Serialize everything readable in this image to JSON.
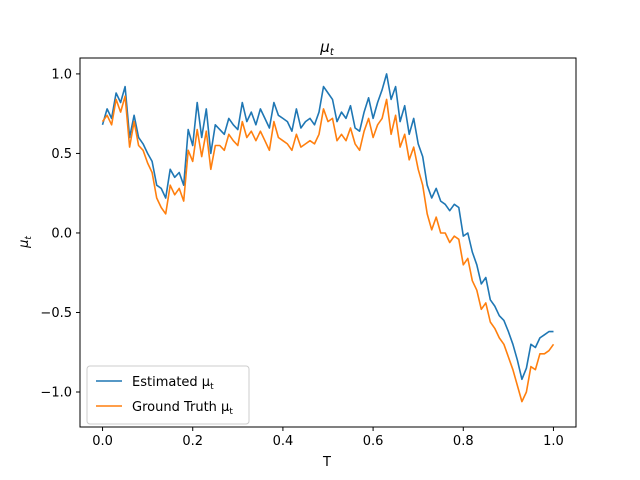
{
  "chart_data": {
    "type": "line",
    "title": "μt",
    "title_parts": {
      "base": "μ",
      "sub": "t"
    },
    "xlabel": "T",
    "ylabel": "μt",
    "ylabel_parts": {
      "base": "μ",
      "sub": "t"
    },
    "xlim": [
      -0.05,
      1.05
    ],
    "ylim": [
      -1.22,
      1.1
    ],
    "xticks": [
      0.0,
      0.2,
      0.4,
      0.6,
      0.8,
      1.0
    ],
    "xtick_labels": [
      "0.0",
      "0.2",
      "0.4",
      "0.6",
      "0.8",
      "1.0"
    ],
    "yticks": [
      1.0,
      0.5,
      0.0,
      -0.5,
      -1.0
    ],
    "ytick_labels": [
      "1.0",
      "0.5",
      "0.0",
      "−0.5",
      "−1.0"
    ],
    "grid": false,
    "legend_position": "lower-left",
    "series": [
      {
        "name": "Estimated μt",
        "legend_base": "Estimated μ",
        "legend_sub": "t",
        "color": "#1f77b4",
        "x": [
          0.0,
          0.01,
          0.02,
          0.03,
          0.04,
          0.05,
          0.06,
          0.07,
          0.08,
          0.09,
          0.1,
          0.11,
          0.12,
          0.13,
          0.14,
          0.15,
          0.16,
          0.17,
          0.18,
          0.19,
          0.2,
          0.21,
          0.22,
          0.23,
          0.24,
          0.25,
          0.26,
          0.27,
          0.28,
          0.29,
          0.3,
          0.31,
          0.32,
          0.33,
          0.34,
          0.35,
          0.36,
          0.37,
          0.38,
          0.39,
          0.4,
          0.41,
          0.42,
          0.43,
          0.44,
          0.45,
          0.46,
          0.47,
          0.48,
          0.49,
          0.5,
          0.51,
          0.52,
          0.53,
          0.54,
          0.55,
          0.56,
          0.57,
          0.58,
          0.59,
          0.6,
          0.61,
          0.62,
          0.63,
          0.64,
          0.65,
          0.66,
          0.67,
          0.68,
          0.69,
          0.7,
          0.71,
          0.72,
          0.73,
          0.74,
          0.75,
          0.76,
          0.77,
          0.78,
          0.79,
          0.8,
          0.81,
          0.82,
          0.83,
          0.84,
          0.85,
          0.86,
          0.87,
          0.88,
          0.89,
          0.9,
          0.91,
          0.92,
          0.93,
          0.94,
          0.95,
          0.96,
          0.97,
          0.98,
          0.99,
          1.0
        ],
        "y": [
          0.68,
          0.78,
          0.72,
          0.88,
          0.82,
          0.92,
          0.6,
          0.74,
          0.6,
          0.56,
          0.5,
          0.45,
          0.3,
          0.28,
          0.22,
          0.4,
          0.35,
          0.38,
          0.3,
          0.65,
          0.55,
          0.82,
          0.6,
          0.78,
          0.5,
          0.68,
          0.65,
          0.62,
          0.72,
          0.68,
          0.65,
          0.82,
          0.7,
          0.76,
          0.68,
          0.78,
          0.72,
          0.66,
          0.82,
          0.74,
          0.72,
          0.7,
          0.64,
          0.78,
          0.66,
          0.7,
          0.72,
          0.68,
          0.76,
          0.92,
          0.88,
          0.84,
          0.7,
          0.76,
          0.72,
          0.8,
          0.66,
          0.64,
          0.76,
          0.85,
          0.72,
          0.82,
          0.9,
          1.0,
          0.84,
          0.92,
          0.7,
          0.8,
          0.62,
          0.72,
          0.56,
          0.48,
          0.3,
          0.22,
          0.28,
          0.2,
          0.18,
          0.14,
          0.18,
          0.16,
          -0.02,
          0.0,
          -0.12,
          -0.2,
          -0.32,
          -0.28,
          -0.42,
          -0.46,
          -0.52,
          -0.55,
          -0.62,
          -0.7,
          -0.8,
          -0.92,
          -0.85,
          -0.7,
          -0.72,
          -0.66,
          -0.64,
          -0.62,
          -0.62
        ]
      },
      {
        "name": "Ground Truth μt",
        "legend_base": "Ground Truth μ",
        "legend_sub": "t",
        "color": "#ff7f0e",
        "x": [
          0.0,
          0.01,
          0.02,
          0.03,
          0.04,
          0.05,
          0.06,
          0.07,
          0.08,
          0.09,
          0.1,
          0.11,
          0.12,
          0.13,
          0.14,
          0.15,
          0.16,
          0.17,
          0.18,
          0.19,
          0.2,
          0.21,
          0.22,
          0.23,
          0.24,
          0.25,
          0.26,
          0.27,
          0.28,
          0.29,
          0.3,
          0.31,
          0.32,
          0.33,
          0.34,
          0.35,
          0.36,
          0.37,
          0.38,
          0.39,
          0.4,
          0.41,
          0.42,
          0.43,
          0.44,
          0.45,
          0.46,
          0.47,
          0.48,
          0.49,
          0.5,
          0.51,
          0.52,
          0.53,
          0.54,
          0.55,
          0.56,
          0.57,
          0.58,
          0.59,
          0.6,
          0.61,
          0.62,
          0.63,
          0.64,
          0.65,
          0.66,
          0.67,
          0.68,
          0.69,
          0.7,
          0.71,
          0.72,
          0.73,
          0.74,
          0.75,
          0.76,
          0.77,
          0.78,
          0.79,
          0.8,
          0.81,
          0.82,
          0.83,
          0.84,
          0.85,
          0.86,
          0.87,
          0.88,
          0.89,
          0.9,
          0.91,
          0.92,
          0.93,
          0.94,
          0.95,
          0.96,
          0.97,
          0.98,
          0.99,
          1.0
        ],
        "y": [
          0.7,
          0.74,
          0.68,
          0.84,
          0.76,
          0.86,
          0.54,
          0.7,
          0.55,
          0.52,
          0.44,
          0.38,
          0.22,
          0.16,
          0.12,
          0.3,
          0.24,
          0.28,
          0.2,
          0.52,
          0.45,
          0.65,
          0.48,
          0.64,
          0.4,
          0.55,
          0.55,
          0.52,
          0.62,
          0.58,
          0.55,
          0.7,
          0.6,
          0.64,
          0.58,
          0.64,
          0.58,
          0.52,
          0.7,
          0.6,
          0.58,
          0.56,
          0.52,
          0.62,
          0.54,
          0.56,
          0.58,
          0.56,
          0.62,
          0.78,
          0.7,
          0.72,
          0.58,
          0.62,
          0.58,
          0.66,
          0.56,
          0.52,
          0.64,
          0.72,
          0.6,
          0.68,
          0.72,
          0.84,
          0.62,
          0.74,
          0.54,
          0.62,
          0.46,
          0.54,
          0.4,
          0.3,
          0.12,
          0.02,
          0.1,
          0.0,
          0.0,
          -0.06,
          -0.02,
          -0.04,
          -0.2,
          -0.16,
          -0.3,
          -0.36,
          -0.48,
          -0.44,
          -0.56,
          -0.6,
          -0.66,
          -0.7,
          -0.78,
          -0.86,
          -0.96,
          -1.06,
          -1.0,
          -0.84,
          -0.86,
          -0.76,
          -0.76,
          -0.74,
          -0.7
        ]
      }
    ]
  }
}
